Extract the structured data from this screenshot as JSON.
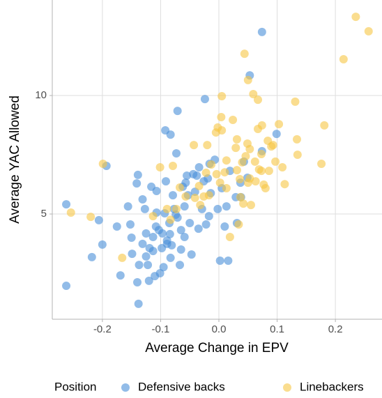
{
  "chart_data": {
    "type": "scatter",
    "x_label": "Average Change in EPV",
    "y_label": "Average YAC Allowed",
    "legend_title": "Position",
    "legend": "bottom",
    "grid": true,
    "xlim": [
      -0.286,
      0.28
    ],
    "ylim": [
      0.56,
      14.03
    ],
    "xticks": [
      -0.2,
      -0.1,
      {
        "value": 0,
        "label": "0.0"
      },
      0.1,
      0.2
    ],
    "yticks": [
      5,
      10
    ],
    "series": [
      {
        "name": "Defensive backs",
        "color": "#4a90d9",
        "x": [
          -0.262,
          -0.262,
          -0.218,
          -0.206,
          -0.2,
          -0.193,
          -0.175,
          -0.169,
          -0.156,
          -0.152,
          -0.149,
          -0.14,
          -0.139,
          -0.131,
          -0.127,
          -0.125,
          -0.119,
          -0.137,
          -0.107,
          -0.097,
          -0.092,
          -0.083,
          -0.073,
          -0.071,
          -0.044,
          -0.062,
          -0.077,
          -0.085,
          -0.089,
          -0.101,
          -0.113,
          -0.122,
          -0.108,
          -0.093,
          -0.079,
          -0.059,
          -0.055,
          -0.034,
          -0.024,
          -0.019,
          -0.016,
          -0.014,
          -0.007,
          -0.002,
          0.005,
          0.013,
          0.019,
          0.01,
          0.002,
          0.016,
          0.031,
          0.037,
          0.038,
          0.049,
          0.053,
          0.074,
          0.099,
          0.074,
          -0.035,
          -0.047,
          -0.067,
          -0.083,
          -0.089,
          -0.107,
          -0.113,
          -0.125,
          -0.131,
          -0.071,
          -0.053,
          -0.041,
          -0.029,
          -0.017,
          -0.11,
          -0.12,
          -0.095,
          -0.065,
          -0.059,
          -0.05,
          -0.098,
          -0.081,
          -0.141,
          -0.138,
          -0.116,
          -0.15,
          -0.038,
          -0.091,
          -0.074,
          -0.057,
          0.043,
          0.029,
          -0.026,
          -0.022,
          -0.065,
          -0.103,
          -0.084
        ],
        "values": [
          5.41,
          1.97,
          3.18,
          4.74,
          3.71,
          7.03,
          4.47,
          2.41,
          5.32,
          4.56,
          3.32,
          2.12,
          6.65,
          5.62,
          5.21,
          3.21,
          3.56,
          2.85,
          5.97,
          4.18,
          8.53,
          8.35,
          7.56,
          9.35,
          6.68,
          6.15,
          5.21,
          4.62,
          3.74,
          2.5,
          3.44,
          2.85,
          4.47,
          5.03,
          5.79,
          5.32,
          6.62,
          6.97,
          9.85,
          6.5,
          7.12,
          5.88,
          7.29,
          5.21,
          6.09,
          5.32,
          6.82,
          4.47,
          3.03,
          3.03,
          4.62,
          6.32,
          5.71,
          6.53,
          10.85,
          7.65,
          8.38,
          12.68,
          4.38,
          3.29,
          2.85,
          3.15,
          3.88,
          5.06,
          4.03,
          4.18,
          3.74,
          4.85,
          5.79,
          5.94,
          5.21,
          4.91,
          2.38,
          2.18,
          2.76,
          4.32,
          4.03,
          4.62,
          3.56,
          3.68,
          6.29,
          1.21,
          6.15,
          4.0,
          6.62,
          6.38,
          4.97,
          6.32,
          7.21,
          5.71,
          6.38,
          4.56,
          3.5,
          4.32,
          4.15
        ]
      },
      {
        "name": "Linebackers",
        "color": "#f7c744",
        "x": [
          -0.254,
          -0.22,
          -0.199,
          -0.067,
          -0.079,
          -0.043,
          -0.034,
          -0.032,
          -0.026,
          -0.017,
          -0.013,
          -0.004,
          0.002,
          0.004,
          0.005,
          0.01,
          0.013,
          0.024,
          0.029,
          0.031,
          0.036,
          0.037,
          0.042,
          0.046,
          0.05,
          0.053,
          0.055,
          0.059,
          0.062,
          0.063,
          0.067,
          0.069,
          0.073,
          0.074,
          0.077,
          0.08,
          0.084,
          0.09,
          0.093,
          0.097,
          0.103,
          0.109,
          0.113,
          0.131,
          0.134,
          0.135,
          0.176,
          0.181,
          0.214,
          0.235,
          0.257,
          0.044,
          0.05,
          0.049,
          0.034,
          0.019,
          0.031,
          0.013,
          -0.02,
          -0.022,
          -0.041,
          -0.057,
          -0.073,
          -0.083,
          -0.089,
          -0.101,
          -0.113,
          -0.166,
          0.053,
          0.073,
          0.067,
          0.086,
          0.04,
          -0.005,
          0.005,
          -0.002
        ],
        "values": [
          5.06,
          4.88,
          7.12,
          6.12,
          7.03,
          7.91,
          6.18,
          5.38,
          5.74,
          5.79,
          7.09,
          6.68,
          6.32,
          9.09,
          9.97,
          6.76,
          6.09,
          8.97,
          7.79,
          6.85,
          6.47,
          5.71,
          5.44,
          7.44,
          6.32,
          6.5,
          5.38,
          10.06,
          7.21,
          6.38,
          9.82,
          6.88,
          7.53,
          8.74,
          6.24,
          6.09,
          8.09,
          7.85,
          7.91,
          7.21,
          8.79,
          6.97,
          6.26,
          9.74,
          8.15,
          7.5,
          7.12,
          8.74,
          11.53,
          13.32,
          12.71,
          11.76,
          10.65,
          7.97,
          4.56,
          4.03,
          8.15,
          7.26,
          7.91,
          6.74,
          5.68,
          5.74,
          5.21,
          4.76,
          5.21,
          6.97,
          4.91,
          3.15,
          7.74,
          6.82,
          8.59,
          6.82,
          7.18,
          8.44,
          8.53,
          8.65
        ]
      }
    ]
  }
}
